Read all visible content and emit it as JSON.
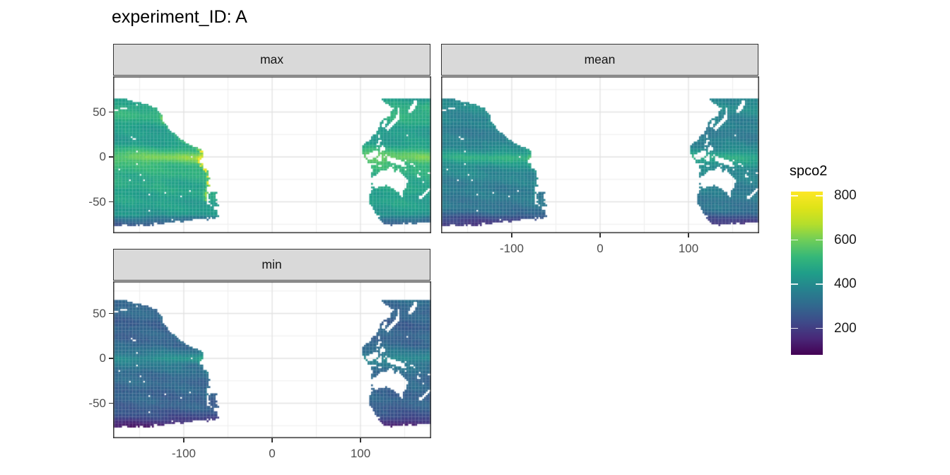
{
  "title": "experiment_ID: A",
  "legend": {
    "title": "spco2",
    "tick_labels": [
      "800",
      "600",
      "400",
      "200"
    ]
  },
  "style": {
    "strip_bg": "#d9d9d9",
    "border": "#333333",
    "grid_major": "#e3e3e3",
    "grid_minor": "#eeeeee",
    "axis_text": "#4d4d4d",
    "strip_text": "#141414",
    "viridis": [
      [
        68,
        1,
        84
      ],
      [
        72,
        40,
        120
      ],
      [
        62,
        74,
        137
      ],
      [
        49,
        104,
        142
      ],
      [
        38,
        130,
        142
      ],
      [
        31,
        158,
        137
      ],
      [
        53,
        183,
        121
      ],
      [
        109,
        205,
        89
      ],
      [
        180,
        222,
        44
      ],
      [
        223,
        227,
        42
      ],
      [
        253,
        231,
        37
      ]
    ]
  },
  "chart_data": {
    "type": "heatmap",
    "title": "experiment_ID: A",
    "region": "Pacific Ocean raster map, lon/lat grid",
    "variable": "spco2",
    "facets": [
      {
        "label": "max"
      },
      {
        "label": "mean"
      },
      {
        "label": "min"
      }
    ],
    "x": {
      "label": "",
      "ticks": [
        -100,
        0,
        100
      ],
      "minor_ticks": [
        -150,
        -50,
        50,
        150
      ],
      "range": [
        -180,
        180
      ]
    },
    "y": {
      "label": "",
      "ticks": [
        50,
        0,
        -50
      ],
      "minor_ticks": [
        -75,
        -25,
        25,
        75
      ],
      "range": [
        -86,
        90
      ]
    },
    "color_scale": {
      "name": "viridis",
      "domain": [
        80,
        820
      ],
      "legend_title": "spco2",
      "legend_ticks": [
        800,
        600,
        400,
        200
      ]
    },
    "zonal_profiles": {
      "max": [
        [
          64,
          435
        ],
        [
          56,
          490
        ],
        [
          48,
          505
        ],
        [
          40,
          478
        ],
        [
          30,
          445
        ],
        [
          22,
          432
        ],
        [
          14,
          455
        ],
        [
          8,
          505
        ],
        [
          3,
          560
        ],
        [
          0,
          575
        ],
        [
          -4,
          552
        ],
        [
          -10,
          515
        ],
        [
          -18,
          492
        ],
        [
          -28,
          472
        ],
        [
          -38,
          462
        ],
        [
          -48,
          452
        ],
        [
          -56,
          440
        ],
        [
          -64,
          428
        ],
        [
          -69,
          330
        ],
        [
          -73,
          285
        ],
        [
          -77,
          260
        ]
      ],
      "mean": [
        [
          64,
          390
        ],
        [
          56,
          398
        ],
        [
          48,
          388
        ],
        [
          40,
          368
        ],
        [
          30,
          355
        ],
        [
          22,
          355
        ],
        [
          14,
          368
        ],
        [
          8,
          408
        ],
        [
          3,
          450
        ],
        [
          0,
          462
        ],
        [
          -4,
          442
        ],
        [
          -10,
          412
        ],
        [
          -18,
          382
        ],
        [
          -28,
          362
        ],
        [
          -38,
          350
        ],
        [
          -48,
          342
        ],
        [
          -56,
          334
        ],
        [
          -62,
          305
        ],
        [
          -67,
          248
        ],
        [
          -72,
          205
        ],
        [
          -77,
          168
        ]
      ],
      "min": [
        [
          64,
          308
        ],
        [
          56,
          303
        ],
        [
          48,
          292
        ],
        [
          40,
          280
        ],
        [
          30,
          282
        ],
        [
          22,
          290
        ],
        [
          14,
          303
        ],
        [
          8,
          330
        ],
        [
          3,
          365
        ],
        [
          0,
          385
        ],
        [
          -4,
          352
        ],
        [
          -10,
          328
        ],
        [
          -18,
          308
        ],
        [
          -28,
          297
        ],
        [
          -38,
          289
        ],
        [
          -48,
          283
        ],
        [
          -56,
          274
        ],
        [
          -62,
          252
        ],
        [
          -67,
          208
        ],
        [
          -72,
          162
        ],
        [
          -77,
          118
        ]
      ]
    },
    "coast_east_americas": [
      [
        64,
        -165
      ],
      [
        60,
        -149
      ],
      [
        57,
        -136
      ],
      [
        52,
        -128
      ],
      [
        48,
        -124.5
      ],
      [
        43,
        -124.3
      ],
      [
        37,
        -122
      ],
      [
        33,
        -117.5
      ],
      [
        27,
        -112.5
      ],
      [
        23,
        -106
      ],
      [
        19,
        -104
      ],
      [
        16,
        -98
      ],
      [
        13,
        -91
      ],
      [
        9,
        -83.5
      ],
      [
        6.5,
        -78.5
      ],
      [
        2,
        -78.5
      ],
      [
        -2,
        -80.5
      ],
      [
        -6,
        -81
      ],
      [
        -12,
        -76.5
      ],
      [
        -18,
        -71
      ],
      [
        -24,
        -70.5
      ],
      [
        -30,
        -71.5
      ],
      [
        -37,
        -73
      ],
      [
        -43,
        -74
      ],
      [
        -50,
        -73.5
      ],
      [
        -54,
        -71
      ],
      [
        -57,
        -66
      ],
      [
        -60,
        -62
      ],
      [
        -64,
        -61
      ],
      [
        -77,
        -61
      ]
    ],
    "coast_west_asia": [
      [
        64,
        124
      ],
      [
        60,
        128
      ],
      [
        56,
        135
      ],
      [
        52,
        137
      ],
      [
        48,
        135
      ],
      [
        44,
        131
      ],
      [
        40,
        124
      ],
      [
        36,
        121
      ],
      [
        32,
        121
      ],
      [
        28,
        120
      ],
      [
        24,
        114
      ],
      [
        20,
        110
      ],
      [
        16,
        107
      ],
      [
        12,
        103
      ],
      [
        8,
        101
      ],
      [
        4,
        101
      ],
      [
        0,
        103
      ],
      [
        -4,
        105
      ],
      [
        -8,
        107
      ],
      [
        -11,
        113
      ],
      [
        -20,
        113
      ],
      [
        -30,
        114
      ],
      [
        -36,
        114
      ],
      [
        -42,
        110
      ],
      [
        -50,
        111
      ],
      [
        -58,
        114
      ],
      [
        -66,
        120
      ],
      [
        -77,
        128
      ]
    ],
    "australia_polygon": [
      [
        113,
        -21.5
      ],
      [
        114,
        -26
      ],
      [
        114.5,
        -33
      ],
      [
        117.5,
        -35
      ],
      [
        121,
        -33.5
      ],
      [
        125,
        -32.2
      ],
      [
        129,
        -31.8
      ],
      [
        132,
        -32.5
      ],
      [
        134,
        -35
      ],
      [
        137,
        -35.5
      ],
      [
        139.5,
        -37.5
      ],
      [
        143,
        -38.8
      ],
      [
        147,
        -38.5
      ],
      [
        150,
        -37
      ],
      [
        152,
        -33
      ],
      [
        153.5,
        -28.5
      ],
      [
        153,
        -25.5
      ],
      [
        150.5,
        -22
      ],
      [
        148,
        -19.5
      ],
      [
        146,
        -17.5
      ],
      [
        144,
        -14.5
      ],
      [
        142.5,
        -10.8
      ],
      [
        140.5,
        -17
      ],
      [
        139,
        -16.5
      ],
      [
        136.5,
        -11.8
      ],
      [
        134,
        -11.8
      ],
      [
        131.5,
        -11.2
      ],
      [
        129.5,
        -14.5
      ],
      [
        126,
        -13.8
      ],
      [
        122,
        -16.5
      ],
      [
        119,
        -19.5
      ],
      [
        116,
        -20.5
      ]
    ],
    "land_capsules_west": [
      [
        156.5,
        51,
        162.5,
        60.5,
        2.3
      ],
      [
        142,
        46.5,
        143.5,
        53.8,
        1.2
      ],
      [
        130.5,
        31.5,
        143,
        43.5,
        2.0
      ],
      [
        126.5,
        34.5,
        127.5,
        39.8,
        1.9
      ],
      [
        120.6,
        22.3,
        121.8,
        25.2,
        1.0
      ],
      [
        120,
        13.8,
        122,
        18.6,
        1.6
      ],
      [
        122.5,
        9.5,
        125.5,
        11.5,
        1.3
      ],
      [
        122.5,
        6.8,
        126.3,
        8.8,
        1.7
      ],
      [
        117.6,
        8.6,
        119.6,
        10.9,
        0.8
      ],
      [
        110.3,
        0.2,
        116.8,
        3.6,
        3.8
      ],
      [
        100,
        1.5,
        105.5,
        -4.5,
        2.6
      ],
      [
        106,
        -7.1,
        114.8,
        -7.9,
        1.2
      ],
      [
        115.5,
        -8.5,
        124,
        -9.5,
        0.9
      ],
      [
        120.2,
        -1.8,
        122.8,
        0.8,
        1.6
      ],
      [
        121.5,
        -4.8,
        123.3,
        -2.5,
        1.0
      ],
      [
        127.7,
        0,
        128.4,
        1.5,
        0.8
      ],
      [
        132,
        -2.2,
        146.5,
        -7.2,
        3.0
      ],
      [
        146.5,
        -7.2,
        150.5,
        -9.8,
        1.6
      ],
      [
        149.5,
        -5.6,
        151.8,
        -4.6,
        0.9
      ],
      [
        156,
        -7,
        160.5,
        -9.3,
        1.0
      ],
      [
        166.5,
        -15,
        168.5,
        -17.5,
        0.7
      ],
      [
        164,
        -20.3,
        167,
        -22.3,
        0.9
      ],
      [
        177.5,
        -17.5,
        178.5,
        -18,
        0.8
      ],
      [
        145.6,
        -40.8,
        147.6,
        -43.2,
        1.6
      ],
      [
        173,
        -39.8,
        178.3,
        -36,
        1.4
      ],
      [
        166.8,
        -45.8,
        173.5,
        -41.3,
        1.5
      ],
      [
        109.3,
        18.8,
        110.8,
        19.8,
        1.0
      ]
    ],
    "island_capsules_east": [
      [
        -159,
        21.8,
        -155,
        19.8,
        0.9
      ],
      [
        -91.5,
        -0.7,
        -90.5,
        -0.3,
        0.8
      ],
      [
        -150,
        -17.5,
        -149,
        -17,
        0.7
      ],
      [
        -172.5,
        -13.8,
        -171.5,
        -13.5,
        0.6
      ],
      [
        -179,
        -17,
        -178,
        -18,
        0.7
      ],
      [
        -140.3,
        -9.2,
        -139.8,
        -8.8,
        0.5
      ],
      [
        -179,
        51.8,
        -164.5,
        54.6,
        0.8
      ],
      [
        -154.5,
        57.2,
        -153,
        57.8,
        0.8
      ]
    ]
  }
}
